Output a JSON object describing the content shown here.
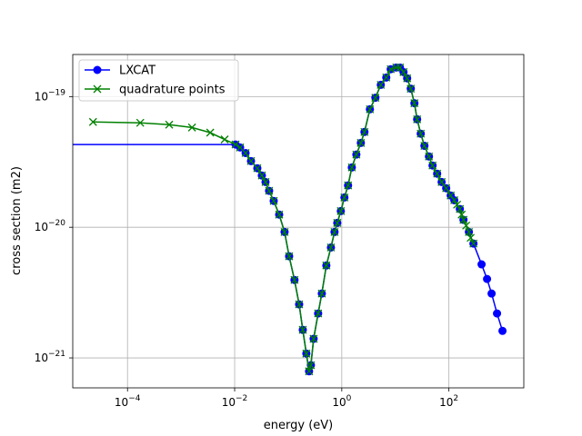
{
  "chart_data": {
    "type": "line",
    "xlabel": "energy (eV)",
    "ylabel": "cross section (m2)",
    "xscale": "log",
    "yscale": "log",
    "grid": true,
    "legend": "upper left",
    "xlim": [
      9.5e-06,
      2500
    ],
    "ylim": [
      5.9e-22,
      2.1e-19
    ],
    "xticks": [
      {
        "value": 0.0001,
        "label": "10−4"
      },
      {
        "value": 0.01,
        "label": "10−2"
      },
      {
        "value": 1,
        "label": "100"
      },
      {
        "value": 100,
        "label": "102"
      }
    ],
    "yticks": [
      {
        "value": 1e-21,
        "label": "10−21"
      },
      {
        "value": 1e-20,
        "label": "10−20"
      },
      {
        "value": 1e-19,
        "label": "10−19"
      }
    ],
    "series": [
      {
        "name": "LXCAT",
        "color": "#0000ff",
        "marker": "o",
        "x": [
          1e-06,
          0.0104,
          0.01265,
          0.016,
          0.0202,
          0.0265,
          0.0322,
          0.0377,
          0.044,
          0.0536,
          0.0678,
          0.0855,
          0.104,
          0.131,
          0.16,
          0.187,
          0.218,
          0.245,
          0.265,
          0.298,
          0.362,
          0.424,
          0.515,
          0.627,
          0.732,
          0.823,
          0.96,
          1.12,
          1.31,
          1.54,
          1.87,
          2.27,
          2.65,
          3.35,
          4.24,
          5.35,
          6.77,
          8.2,
          10.4,
          12.2,
          14.2,
          16.6,
          19.4,
          22.7,
          25.5,
          29.8,
          34.9,
          42.4,
          49.5,
          60.3,
          73.1,
          88.9,
          108,
          126,
          160,
          187,
          236,
          287,
          407,
          515,
          626,
          791,
          1000
        ],
        "values": [
          4.3e-20,
          4.3e-20,
          4.08e-20,
          3.7e-20,
          3.21e-20,
          2.83e-20,
          2.49e-20,
          2.22e-20,
          1.9e-20,
          1.59e-20,
          1.25e-20,
          9.2e-21,
          6e-21,
          3.95e-21,
          2.57e-21,
          1.64e-21,
          1.08e-21,
          7.9e-22,
          8.8e-22,
          1.4e-21,
          2.19e-21,
          3.11e-21,
          5.1e-21,
          7e-21,
          9.2e-21,
          1.08e-20,
          1.33e-20,
          1.69e-20,
          2.09e-20,
          2.87e-20,
          3.6e-20,
          4.42e-20,
          5.36e-20,
          8e-20,
          9.8e-20,
          1.23e-19,
          1.4e-19,
          1.62e-19,
          1.67e-19,
          1.67e-19,
          1.54e-19,
          1.38e-19,
          1.15e-19,
          8.9e-20,
          6.7e-20,
          5.2e-20,
          4.2e-20,
          3.48e-20,
          2.97e-20,
          2.57e-20,
          2.22e-20,
          1.99e-20,
          1.75e-20,
          1.61e-20,
          1.38e-20,
          1.14e-20,
          9.2e-21,
          7.5e-21,
          5.2e-21,
          4.02e-21,
          3.11e-21,
          2.19e-21,
          1.61e-21
        ]
      },
      {
        "name": "quadrature points",
        "color": "#008000",
        "marker": "x",
        "x": [
          2.27e-05,
          0.000173,
          0.0006,
          0.0016,
          0.0035,
          0.0065,
          0.0104,
          0.01265,
          0.016,
          0.0202,
          0.0265,
          0.0322,
          0.0377,
          0.044,
          0.0536,
          0.0678,
          0.0855,
          0.104,
          0.131,
          0.16,
          0.187,
          0.218,
          0.245,
          0.265,
          0.298,
          0.362,
          0.424,
          0.515,
          0.627,
          0.732,
          0.823,
          0.96,
          1.12,
          1.31,
          1.54,
          1.87,
          2.27,
          2.65,
          3.35,
          4.24,
          5.35,
          6.77,
          8.2,
          10.4,
          12.2,
          14.2,
          16.6,
          19.4,
          22.7,
          25.5,
          29.8,
          34.9,
          42.4,
          49.5,
          60.3,
          73.1,
          88.9,
          108,
          126,
          142,
          160,
          173,
          187,
          210,
          236,
          255,
          287
        ],
        "values": [
          6.4e-20,
          6.3e-20,
          6.1e-20,
          5.8e-20,
          5.3e-20,
          4.7e-20,
          4.3e-20,
          4.08e-20,
          3.7e-20,
          3.21e-20,
          2.83e-20,
          2.49e-20,
          2.22e-20,
          1.9e-20,
          1.59e-20,
          1.25e-20,
          9.2e-21,
          6e-21,
          3.95e-21,
          2.57e-21,
          1.64e-21,
          1.08e-21,
          7.9e-22,
          8.8e-22,
          1.4e-21,
          2.19e-21,
          3.11e-21,
          5.1e-21,
          7e-21,
          9.2e-21,
          1.08e-20,
          1.33e-20,
          1.69e-20,
          2.09e-20,
          2.87e-20,
          3.6e-20,
          4.42e-20,
          5.36e-20,
          8e-20,
          9.8e-20,
          1.23e-19,
          1.4e-19,
          1.62e-19,
          1.67e-19,
          1.67e-19,
          1.54e-19,
          1.38e-19,
          1.15e-19,
          8.9e-20,
          6.7e-20,
          5.2e-20,
          4.2e-20,
          3.48e-20,
          2.97e-20,
          2.57e-20,
          2.22e-20,
          1.99e-20,
          1.75e-20,
          1.61e-20,
          1.49e-20,
          1.38e-20,
          1.25e-20,
          1.14e-20,
          1.03e-20,
          9.2e-21,
          8.3e-21,
          7.5e-21
        ]
      }
    ]
  }
}
